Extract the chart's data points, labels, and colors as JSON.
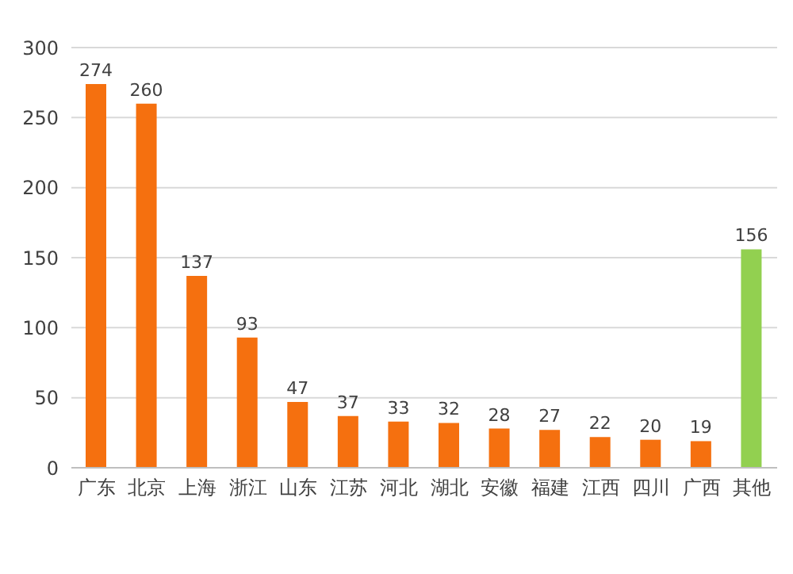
{
  "chart_data": {
    "type": "bar",
    "categories": [
      "广东",
      "北京",
      "上海",
      "浙江",
      "山东",
      "江苏",
      "河北",
      "湖北",
      "安徽",
      "福建",
      "江西",
      "四川",
      "广西",
      "其他"
    ],
    "values": [
      274,
      260,
      137,
      93,
      47,
      37,
      33,
      32,
      28,
      27,
      22,
      20,
      19,
      156
    ],
    "colors": [
      "#f5700f",
      "#f5700f",
      "#f5700f",
      "#f5700f",
      "#f5700f",
      "#f5700f",
      "#f5700f",
      "#f5700f",
      "#f5700f",
      "#f5700f",
      "#f5700f",
      "#f5700f",
      "#f5700f",
      "#92d050"
    ],
    "ylim": [
      0,
      300
    ],
    "yticks": [
      0,
      50,
      100,
      150,
      200,
      250,
      300
    ],
    "grid": "y",
    "data_labels": true
  }
}
